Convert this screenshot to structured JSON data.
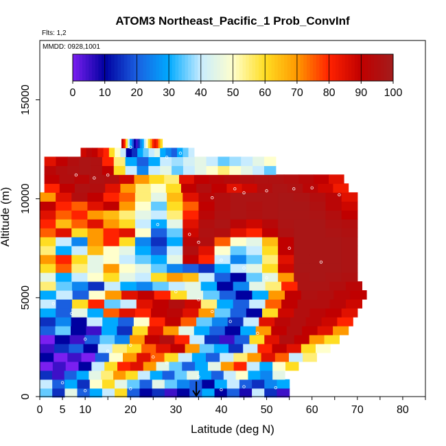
{
  "chart_data": {
    "type": "heatmap",
    "title": "ATOM3 Northeast_Pacific_1 Prob_ConvInf",
    "flights_label": "Flts: 1,2",
    "date_label": "MMDD: 0928,1001",
    "xlabel": "Latitude (deg N)",
    "ylabel": "Altitude (m)",
    "xlim": [
      0,
      85
    ],
    "ylim": [
      0,
      18000
    ],
    "x_ticks": [
      0,
      5,
      10,
      20,
      30,
      40,
      50,
      60,
      70,
      80
    ],
    "y_ticks": [
      0,
      5000,
      10000,
      15000
    ],
    "colorbar": {
      "ticks": [
        0,
        10,
        20,
        30,
        40,
        50,
        60,
        70,
        80,
        90,
        100
      ],
      "colors": [
        "#7a1ff0",
        "#0000a0",
        "#1a5fe0",
        "#00aaff",
        "#c8ecff",
        "#ffffcc",
        "#ffdd22",
        "#ff9900",
        "#ff2200",
        "#c00000",
        "#a31c1c"
      ]
    },
    "marker_latitude": 34.5,
    "rows": [
      {
        "alt": 200,
        "lat_min": 0,
        "lat_max": 55,
        "prob": [
          35,
          15,
          45,
          20,
          30,
          40,
          60,
          20,
          10,
          15,
          5,
          10,
          20,
          30,
          10,
          20,
          8,
          40,
          15,
          5
        ]
      },
      {
        "alt": 650,
        "lat_min": 0,
        "lat_max": 55,
        "prob": [
          40,
          20,
          30,
          15,
          50,
          60,
          45,
          35,
          20,
          45,
          35,
          25,
          20,
          10,
          30,
          40,
          20,
          15,
          25,
          30
        ]
      },
      {
        "alt": 1100,
        "lat_min": 0,
        "lat_max": 54,
        "prob": [
          15,
          5,
          20,
          30,
          45,
          55,
          70,
          60,
          40,
          30,
          20,
          35,
          45,
          30,
          20,
          40,
          50,
          30,
          25,
          45
        ]
      },
      {
        "alt": 1550,
        "lat_min": 0,
        "lat_max": 57,
        "prob": [
          0,
          5,
          0,
          10,
          40,
          60,
          80,
          85,
          70,
          45,
          35,
          20,
          30,
          45,
          70,
          80,
          40,
          30,
          50,
          60
        ]
      },
      {
        "alt": 2000,
        "lat_min": 0,
        "lat_max": 61,
        "prob": [
          10,
          0,
          5,
          0,
          20,
          50,
          70,
          85,
          75,
          60,
          40,
          30,
          20,
          40,
          55,
          70,
          85,
          75,
          40,
          55
        ]
      },
      {
        "alt": 2450,
        "lat_min": 0,
        "lat_max": 64,
        "prob": [
          5,
          15,
          20,
          10,
          40,
          55,
          60,
          75,
          85,
          90,
          70,
          35,
          30,
          15,
          40,
          80,
          90,
          85,
          60,
          50
        ]
      },
      {
        "alt": 2900,
        "lat_min": 0,
        "lat_max": 66,
        "prob": [
          0,
          10,
          5,
          20,
          35,
          25,
          70,
          90,
          95,
          80,
          40,
          15,
          5,
          20,
          60,
          85,
          95,
          90,
          70,
          60
        ]
      },
      {
        "alt": 3350,
        "lat_min": 0,
        "lat_max": 68,
        "prob": [
          20,
          35,
          10,
          5,
          30,
          15,
          60,
          85,
          70,
          45,
          30,
          20,
          10,
          30,
          70,
          90,
          95,
          90,
          85,
          70
        ]
      },
      {
        "alt": 3800,
        "lat_min": 0,
        "lat_max": 69,
        "prob": [
          15,
          25,
          10,
          40,
          30,
          20,
          50,
          80,
          90,
          75,
          35,
          25,
          15,
          40,
          85,
          92,
          95,
          92,
          88,
          80
        ]
      },
      {
        "alt": 4250,
        "lat_min": 0,
        "lat_max": 70,
        "prob": [
          30,
          20,
          45,
          30,
          75,
          85,
          80,
          90,
          92,
          85,
          70,
          35,
          20,
          10,
          60,
          88,
          95,
          92,
          90,
          85
        ]
      },
      {
        "alt": 4700,
        "lat_min": 0,
        "lat_max": 71,
        "prob": [
          40,
          20,
          60,
          80,
          35,
          40,
          85,
          90,
          95,
          88,
          55,
          30,
          20,
          40,
          75,
          90,
          95,
          95,
          92,
          88
        ]
      },
      {
        "alt": 5150,
        "lat_min": 0,
        "lat_max": 72,
        "prob": [
          30,
          40,
          20,
          50,
          70,
          85,
          90,
          80,
          60,
          45,
          35,
          20,
          10,
          30,
          70,
          90,
          96,
          95,
          92,
          90
        ]
      },
      {
        "alt": 5600,
        "lat_min": 0,
        "lat_max": 71,
        "prob": [
          55,
          35,
          25,
          15,
          40,
          30,
          25,
          35,
          40,
          45,
          30,
          10,
          25,
          45,
          55,
          80,
          97,
          97,
          95,
          92
        ]
      },
      {
        "alt": 6050,
        "lat_min": 0,
        "lat_max": 70,
        "prob": [
          45,
          30,
          40,
          50,
          60,
          45,
          40,
          60,
          70,
          65,
          40,
          20,
          10,
          35,
          45,
          70,
          97,
          98,
          97,
          96
        ]
      },
      {
        "alt": 6500,
        "lat_min": 0,
        "lat_max": 70,
        "prob": [
          60,
          75,
          55,
          45,
          70,
          50,
          45,
          35,
          25,
          20,
          15,
          30,
          40,
          45,
          60,
          88,
          98,
          98,
          98,
          97
        ]
      },
      {
        "alt": 6950,
        "lat_min": 0,
        "lat_max": 70,
        "prob": [
          70,
          80,
          60,
          45,
          50,
          40,
          35,
          30,
          45,
          90,
          80,
          40,
          25,
          35,
          55,
          85,
          98,
          98,
          98,
          97
        ]
      },
      {
        "alt": 7400,
        "lat_min": 0,
        "lat_max": 70,
        "prob": [
          55,
          30,
          40,
          65,
          50,
          45,
          30,
          20,
          40,
          95,
          85,
          50,
          35,
          40,
          60,
          90,
          98,
          98,
          98,
          97
        ]
      },
      {
        "alt": 7850,
        "lat_min": 0,
        "lat_max": 70,
        "prob": [
          60,
          40,
          25,
          70,
          80,
          60,
          25,
          15,
          30,
          92,
          95,
          75,
          50,
          45,
          65,
          90,
          98,
          98,
          98,
          97
        ]
      },
      {
        "alt": 8300,
        "lat_min": 0,
        "lat_max": 70,
        "prob": [
          75,
          85,
          60,
          70,
          80,
          85,
          50,
          20,
          35,
          88,
          96,
          95,
          85,
          80,
          90,
          96,
          98,
          98,
          97,
          96
        ]
      },
      {
        "alt": 8750,
        "lat_min": 0,
        "lat_max": 70,
        "prob": [
          80,
          65,
          75,
          85,
          70,
          60,
          40,
          30,
          45,
          85,
          95,
          97,
          92,
          88,
          93,
          97,
          98,
          98,
          96,
          95
        ]
      },
      {
        "alt": 9200,
        "lat_min": 0,
        "lat_max": 70,
        "prob": [
          85,
          75,
          80,
          70,
          65,
          55,
          45,
          40,
          55,
          80,
          92,
          96,
          97,
          96,
          97,
          98,
          98,
          97,
          95,
          90
        ]
      },
      {
        "alt": 9650,
        "lat_min": 0,
        "lat_max": 70,
        "prob": [
          90,
          80,
          75,
          85,
          90,
          70,
          50,
          35,
          60,
          75,
          90,
          95,
          97,
          96,
          97,
          98,
          98,
          96,
          92,
          88
        ]
      },
      {
        "alt": 10100,
        "lat_min": 0,
        "lat_max": 70,
        "prob": [
          70,
          85,
          95,
          90,
          80,
          75,
          55,
          45,
          65,
          85,
          92,
          95,
          97,
          97,
          97,
          98,
          97,
          95,
          92,
          85
        ]
      },
      {
        "alt": 10550,
        "lat_min": 1,
        "lat_max": 68,
        "prob": [
          80,
          90,
          96,
          95,
          85,
          70,
          55,
          50,
          60,
          90,
          95,
          90,
          85,
          88,
          95,
          97,
          96,
          92,
          88,
          82
        ]
      },
      {
        "alt": 11000,
        "lat_min": 1,
        "lat_max": 67,
        "prob": [
          90,
          95,
          92,
          96,
          95,
          88,
          70,
          60,
          55,
          85,
          90,
          92,
          94,
          95,
          96,
          96,
          95,
          93,
          90,
          85
        ]
      },
      {
        "alt": 11450,
        "lat_min": 1,
        "lat_max": 52,
        "prob": [
          92,
          95,
          96,
          97,
          96,
          90,
          60,
          40,
          25,
          40,
          45,
          35,
          40,
          45,
          50,
          55,
          50,
          45,
          40,
          35
        ]
      },
      {
        "alt": 11900,
        "lat_min": 1,
        "lat_max": 52,
        "prob": [
          85,
          90,
          95,
          97,
          96,
          80,
          55,
          30,
          20,
          30,
          40,
          38,
          42,
          45,
          40,
          35,
          38,
          40,
          45,
          50
        ]
      },
      {
        "alt": 12350,
        "lat_min": 9,
        "lat_max": 34,
        "prob": [
          88,
          92,
          90,
          85,
          80,
          60,
          50,
          40,
          10,
          15,
          30,
          35,
          40,
          45,
          30,
          25,
          20,
          30,
          35,
          40
        ]
      },
      {
        "alt": 12800,
        "lat_min": 18,
        "lat_max": 27,
        "prob": [
          90,
          80,
          60,
          40,
          30,
          20,
          10,
          5,
          15,
          25,
          30,
          40,
          50,
          60,
          70,
          80,
          85,
          80,
          70,
          60
        ]
      }
    ],
    "points": [
      {
        "lat": 8,
        "alt": 11200
      },
      {
        "lat": 12,
        "alt": 11050
      },
      {
        "lat": 15,
        "alt": 11200
      },
      {
        "lat": 20,
        "alt": 12600
      },
      {
        "lat": 28,
        "alt": 12100
      },
      {
        "lat": 31,
        "alt": 12300
      },
      {
        "lat": 38,
        "alt": 10050
      },
      {
        "lat": 43,
        "alt": 10500
      },
      {
        "lat": 45,
        "alt": 10300
      },
      {
        "lat": 50,
        "alt": 10400
      },
      {
        "lat": 56,
        "alt": 10500
      },
      {
        "lat": 60,
        "alt": 10550
      },
      {
        "lat": 66,
        "alt": 10200
      },
      {
        "lat": 26,
        "alt": 8700
      },
      {
        "lat": 33,
        "alt": 8200
      },
      {
        "lat": 35,
        "alt": 7800
      },
      {
        "lat": 40,
        "alt": 6900
      },
      {
        "lat": 45,
        "alt": 6500
      },
      {
        "lat": 50,
        "alt": 6000
      },
      {
        "lat": 55,
        "alt": 7500
      },
      {
        "lat": 62,
        "alt": 6800
      },
      {
        "lat": 30,
        "alt": 5300
      },
      {
        "lat": 35,
        "alt": 4900
      },
      {
        "lat": 38,
        "alt": 4300
      },
      {
        "lat": 42,
        "alt": 3800
      },
      {
        "lat": 48,
        "alt": 3200
      },
      {
        "lat": 10,
        "alt": 2900
      },
      {
        "lat": 15,
        "alt": 2300
      },
      {
        "lat": 20,
        "alt": 2600
      },
      {
        "lat": 25,
        "alt": 2000
      },
      {
        "lat": 5,
        "alt": 700
      },
      {
        "lat": 10,
        "alt": 300
      },
      {
        "lat": 20,
        "alt": 400
      },
      {
        "lat": 40,
        "alt": 350
      },
      {
        "lat": 45,
        "alt": 500
      },
      {
        "lat": 52,
        "alt": 450
      },
      {
        "lat": 35,
        "alt": 1000
      },
      {
        "lat": 3,
        "alt": 4700
      },
      {
        "lat": 7,
        "alt": 4200
      },
      {
        "lat": 28,
        "alt": 1700
      }
    ]
  }
}
